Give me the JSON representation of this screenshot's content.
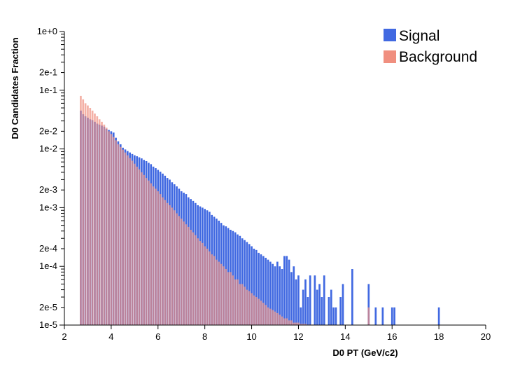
{
  "chart_data": {
    "type": "bar",
    "title": "",
    "xlabel": "D0 PT (GeV/c2)",
    "ylabel": "D0 Candidates Fraction",
    "xlim": [
      2,
      20
    ],
    "ylim": [
      1e-05,
      1
    ],
    "yscale": "log",
    "x_ticks": [
      "2",
      "4",
      "6",
      "8",
      "10",
      "12",
      "14",
      "16",
      "18",
      "20"
    ],
    "y_ticks": [
      {
        "value": 1,
        "label": "1e+0"
      },
      {
        "value": 0.2,
        "label": "2e-1"
      },
      {
        "value": 0.1,
        "label": "1e-1"
      },
      {
        "value": 0.02,
        "label": "2e-2"
      },
      {
        "value": 0.01,
        "label": "1e-2"
      },
      {
        "value": 0.002,
        "label": "2e-3"
      },
      {
        "value": 0.001,
        "label": "1e-3"
      },
      {
        "value": 0.0002,
        "label": "2e-4"
      },
      {
        "value": 0.0001,
        "label": "1e-4"
      },
      {
        "value": 2e-05,
        "label": "2e-5"
      },
      {
        "value": 1e-05,
        "label": "1e-5"
      }
    ],
    "bin_width": 0.1,
    "legend_position": "top-right",
    "grid": false,
    "series": [
      {
        "name": "Signal",
        "color": "#4169e1",
        "x": [
          2.7,
          2.8,
          2.9,
          3.0,
          3.1,
          3.2,
          3.3,
          3.4,
          3.5,
          3.6,
          3.7,
          3.8,
          3.9,
          4.0,
          4.1,
          4.2,
          4.3,
          4.4,
          4.5,
          4.6,
          4.7,
          4.8,
          4.9,
          5.0,
          5.1,
          5.2,
          5.3,
          5.4,
          5.5,
          5.6,
          5.7,
          5.8,
          5.9,
          6.0,
          6.1,
          6.2,
          6.3,
          6.4,
          6.5,
          6.6,
          6.7,
          6.8,
          6.9,
          7.0,
          7.1,
          7.2,
          7.3,
          7.4,
          7.5,
          7.6,
          7.7,
          7.8,
          7.9,
          8.0,
          8.1,
          8.2,
          8.3,
          8.4,
          8.5,
          8.6,
          8.7,
          8.8,
          8.9,
          9.0,
          9.1,
          9.2,
          9.3,
          9.4,
          9.5,
          9.6,
          9.7,
          9.8,
          9.9,
          10.0,
          10.1,
          10.2,
          10.3,
          10.4,
          10.5,
          10.6,
          10.7,
          10.8,
          10.9,
          11.0,
          11.1,
          11.2,
          11.3,
          11.4,
          11.5,
          11.6,
          11.7,
          11.8,
          11.9,
          12.0,
          12.1,
          12.2,
          12.3,
          12.4,
          12.5,
          12.6,
          12.7,
          12.8,
          12.9,
          13.0,
          13.1,
          13.2,
          13.3,
          13.4,
          13.5,
          13.6,
          13.7,
          13.8,
          13.9,
          14.0,
          14.3,
          14.9,
          15.0,
          15.3,
          15.6,
          15.8,
          16.0,
          16.1,
          16.4,
          18.0
        ],
        "values": [
          0.045,
          0.039,
          0.036,
          0.034,
          0.032,
          0.031,
          0.029,
          0.027,
          0.026,
          0.025,
          0.024,
          0.022,
          0.021,
          0.02,
          0.019,
          0.0155,
          0.0135,
          0.012,
          0.0105,
          0.0098,
          0.0092,
          0.0087,
          0.0082,
          0.0078,
          0.0075,
          0.0072,
          0.0069,
          0.0065,
          0.0062,
          0.0058,
          0.0055,
          0.005,
          0.0047,
          0.0044,
          0.0041,
          0.0038,
          0.0035,
          0.0032,
          0.003,
          0.0027,
          0.0025,
          0.0023,
          0.0021,
          0.0019,
          0.0018,
          0.0017,
          0.0015,
          0.0014,
          0.0013,
          0.0012,
          0.0011,
          0.00105,
          0.001,
          0.00095,
          0.0009,
          0.00085,
          0.00075,
          0.0007,
          0.00065,
          0.0006,
          0.00055,
          0.0005,
          0.00048,
          0.00045,
          0.00042,
          0.0004,
          0.00038,
          0.00035,
          0.00033,
          0.0003,
          0.00028,
          0.00026,
          0.00024,
          0.00022,
          0.0002,
          0.00019,
          0.00017,
          0.00016,
          0.00015,
          0.00014,
          0.00013,
          0.00012,
          0.00011,
          0.0001,
          0.00012,
          0.0001,
          9e-05,
          0.00015,
          0.00015,
          0.00013,
          8e-05,
          0.0001,
          6e-05,
          7e-05,
          2e-05,
          4e-05,
          6e-05,
          3e-05,
          7e-05,
          1e-05,
          7e-05,
          4e-05,
          5e-05,
          3e-05,
          7e-05,
          1e-05,
          3e-05,
          4e-05,
          2e-05,
          2e-05,
          1e-05,
          3e-05,
          5e-05,
          1e-05,
          9e-05,
          1e-05,
          5e-05,
          2e-05,
          2e-05,
          1e-05,
          2e-05,
          2e-05,
          1e-05,
          2e-05
        ]
      },
      {
        "name": "Background",
        "color": "#f08f7f",
        "x": [
          2.7,
          2.8,
          2.9,
          3.0,
          3.1,
          3.2,
          3.3,
          3.4,
          3.5,
          3.6,
          3.7,
          3.8,
          3.9,
          4.0,
          4.1,
          4.2,
          4.3,
          4.4,
          4.5,
          4.6,
          4.7,
          4.8,
          4.9,
          5.0,
          5.1,
          5.2,
          5.3,
          5.4,
          5.5,
          5.6,
          5.7,
          5.8,
          5.9,
          6.0,
          6.1,
          6.2,
          6.3,
          6.4,
          6.5,
          6.6,
          6.7,
          6.8,
          6.9,
          7.0,
          7.1,
          7.2,
          7.3,
          7.4,
          7.5,
          7.6,
          7.7,
          7.8,
          7.9,
          8.0,
          8.1,
          8.2,
          8.3,
          8.4,
          8.5,
          8.6,
          8.7,
          8.8,
          8.9,
          9.0,
          9.1,
          9.2,
          9.3,
          9.4,
          9.5,
          9.6,
          9.7,
          9.8,
          9.9,
          10.0,
          10.1,
          10.2,
          10.3,
          10.4,
          10.5,
          10.6,
          10.7,
          10.8,
          10.9,
          11.0,
          11.1,
          11.2,
          11.3,
          11.4,
          11.5,
          11.6,
          11.7,
          11.8,
          11.9,
          12.0,
          12.1,
          12.2,
          12.3,
          12.4,
          12.5,
          12.6,
          12.7,
          12.8,
          12.9,
          13.0,
          13.1,
          13.2,
          13.3,
          13.4,
          13.5,
          13.6,
          13.7,
          13.8,
          13.9,
          14.0,
          15.0
        ],
        "values": [
          0.08,
          0.07,
          0.06,
          0.055,
          0.05,
          0.045,
          0.04,
          0.036,
          0.032,
          0.029,
          0.026,
          0.023,
          0.02,
          0.018,
          0.016,
          0.014,
          0.012,
          0.0108,
          0.0097,
          0.0087,
          0.0078,
          0.007,
          0.0063,
          0.0056,
          0.005,
          0.0045,
          0.004,
          0.0036,
          0.0032,
          0.0029,
          0.0026,
          0.0023,
          0.0021,
          0.0019,
          0.0017,
          0.0015,
          0.00135,
          0.0012,
          0.0011,
          0.001,
          0.0009,
          0.0008,
          0.00072,
          0.00065,
          0.00058,
          0.00052,
          0.00047,
          0.00042,
          0.00038,
          0.00034,
          0.0003,
          0.00027,
          0.00025,
          0.00022,
          0.0002,
          0.00018,
          0.00016,
          0.00015,
          0.00013,
          0.00012,
          0.00011,
          0.0001,
          9e-05,
          8e-05,
          8e-05,
          7e-05,
          6e-05,
          6e-05,
          5e-05,
          5e-05,
          4.5e-05,
          4e-05,
          3.8e-05,
          3.5e-05,
          3.2e-05,
          3e-05,
          2.8e-05,
          2.6e-05,
          2.4e-05,
          2.2e-05,
          2e-05,
          1.9e-05,
          1.8e-05,
          1.7e-05,
          1.6e-05,
          1.5e-05,
          1.4e-05,
          1.3e-05,
          1.3e-05,
          1.2e-05,
          1.2e-05,
          1.1e-05,
          1.1e-05,
          1.1e-05,
          1.05e-05,
          1.05e-05,
          1.05e-05,
          1.02e-05,
          1.02e-05,
          1.02e-05,
          1.01e-05,
          1.01e-05,
          1.01e-05,
          1e-05,
          1e-05,
          1e-05,
          1e-05,
          1e-05,
          1e-05,
          1e-05,
          1e-05,
          1e-05,
          1e-05,
          1e-05,
          2e-05
        ]
      }
    ]
  }
}
